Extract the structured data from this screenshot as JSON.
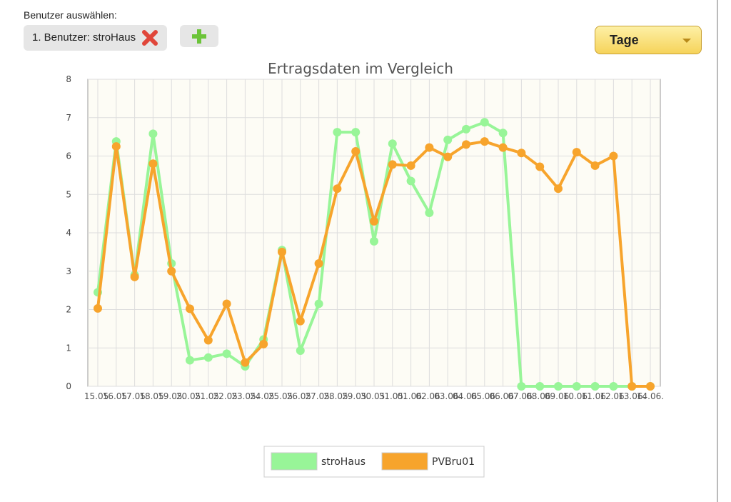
{
  "ui": {
    "select_label": "Benutzer auswählen:",
    "user_chip": "1. Benutzer: stroHaus",
    "period": "Tage"
  },
  "chart_data": {
    "type": "line",
    "title": "Ertragsdaten im Vergleich",
    "categories": [
      "15.05.",
      "16.05.",
      "17.05.",
      "18.05.",
      "19.05.",
      "20.05.",
      "21.05.",
      "22.05.",
      "23.05.",
      "24.05.",
      "25.05.",
      "26.05.",
      "27.05.",
      "28.05.",
      "29.05.",
      "30.05.",
      "31.05.",
      "01.06.",
      "02.06.",
      "03.06.",
      "04.06.",
      "05.06.",
      "06.06.",
      "07.06.",
      "08.06.",
      "09.06.",
      "10.06.",
      "11.06.",
      "12.06.",
      "13.06.",
      "14.06."
    ],
    "series": [
      {
        "name": "stroHaus",
        "color": "#98f598",
        "values": [
          2.45,
          6.38,
          2.9,
          6.58,
          3.2,
          0.68,
          0.75,
          0.85,
          0.52,
          1.22,
          3.55,
          0.93,
          2.15,
          6.62,
          6.62,
          3.78,
          6.32,
          5.35,
          4.52,
          6.42,
          6.7,
          6.88,
          6.6,
          0,
          0,
          0,
          0,
          0,
          0,
          0,
          0
        ]
      },
      {
        "name": "PVBru01",
        "color": "#f7a42c",
        "values": [
          2.03,
          6.25,
          2.85,
          5.8,
          3.0,
          2.02,
          1.2,
          2.15,
          0.62,
          1.1,
          3.5,
          1.7,
          3.2,
          5.15,
          6.12,
          4.3,
          5.78,
          5.75,
          6.22,
          5.98,
          6.3,
          6.38,
          6.22,
          6.08,
          5.72,
          5.15,
          6.1,
          5.75,
          6.0,
          0,
          0
        ]
      }
    ],
    "ylim": [
      0,
      8
    ],
    "yticks": [
      0,
      1,
      2,
      3,
      4,
      5,
      6,
      7,
      8
    ],
    "grid": true,
    "legend": "bottom"
  }
}
